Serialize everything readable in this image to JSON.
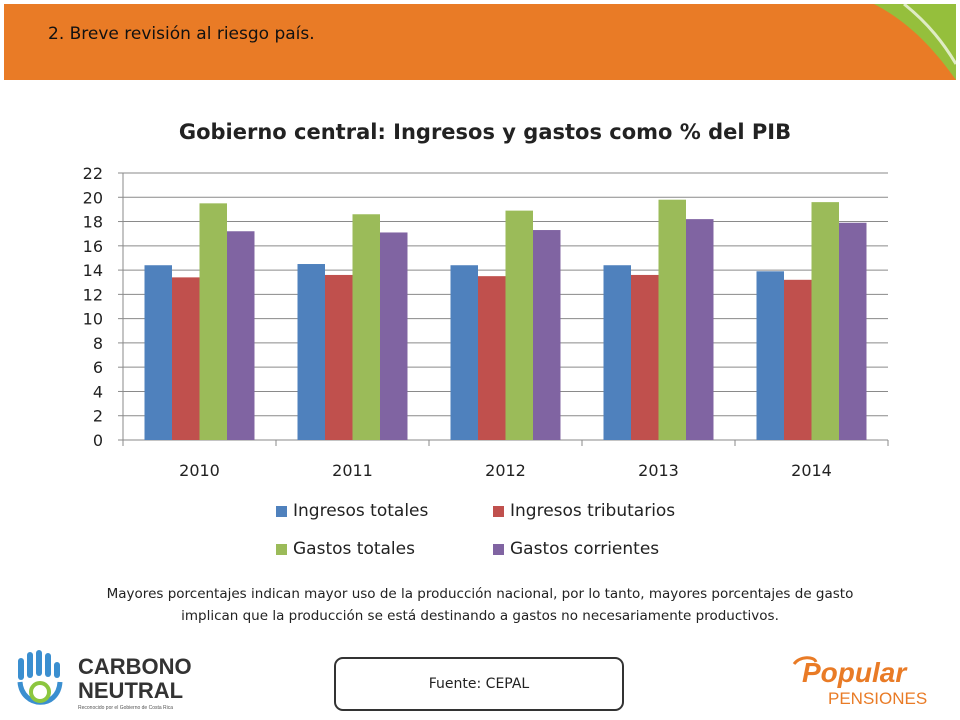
{
  "header": {
    "section_title": "2. Breve revisión al riesgo país."
  },
  "colors": {
    "header_orange": "#e97b26",
    "accent_green": "#8cc63f",
    "series": [
      "#4f81bd",
      "#c0504d",
      "#9bbb59",
      "#8064a2"
    ]
  },
  "chart_data": {
    "type": "bar",
    "title": "Gobierno central: Ingresos y gastos como % del PIB",
    "xlabel": "",
    "ylabel": "",
    "categories": [
      "2010",
      "2011",
      "2012",
      "2013",
      "2014"
    ],
    "series": [
      {
        "name": "Ingresos totales",
        "color": "#4f81bd",
        "values": [
          14.4,
          14.5,
          14.4,
          14.4,
          13.9
        ]
      },
      {
        "name": "Ingresos tributarios",
        "color": "#c0504d",
        "values": [
          13.4,
          13.6,
          13.5,
          13.6,
          13.2
        ]
      },
      {
        "name": "Gastos totales",
        "color": "#9bbb59",
        "values": [
          19.5,
          18.6,
          18.9,
          19.8,
          19.6
        ]
      },
      {
        "name": "Gastos corrientes",
        "color": "#8064a2",
        "values": [
          17.2,
          17.1,
          17.3,
          18.2,
          17.9
        ]
      }
    ],
    "ylim": [
      0,
      22
    ],
    "yticks": [
      0,
      2,
      4,
      6,
      8,
      10,
      12,
      14,
      16,
      18,
      20,
      22
    ],
    "grid": true,
    "legend_position": "bottom"
  },
  "note": {
    "line1": "Mayores porcentajes indican mayor uso de la producción nacional, por lo tanto, mayores porcentajes de gasto",
    "line2": "implican que la producción se está destinando a gastos no necesariamente productivos."
  },
  "source": {
    "label": "Fuente: CEPAL"
  },
  "logos": {
    "left": {
      "line1": "CARBONO",
      "line2": "NEUTRAL",
      "tagline": "Reconocido por el Gobierno de Costa Rica"
    },
    "right": {
      "line1": "Popular",
      "line2": "PENSIONES"
    }
  }
}
